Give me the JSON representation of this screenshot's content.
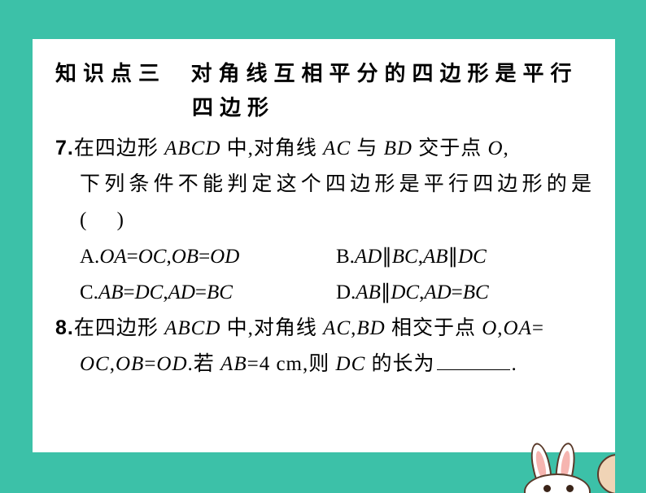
{
  "section": {
    "label": "知识点三",
    "title_line1": "对角线互相平分的四边形是平行",
    "title_line2": "四边形"
  },
  "q7": {
    "num": "7.",
    "line1_prefix": "在四边形",
    "abcd": "ABCD",
    "line1_mid1": "中,对角线",
    "ac": "AC",
    "line1_mid2": "与",
    "bd": "BD",
    "line1_mid3": "交于点",
    "o": "O",
    "line1_end": ",",
    "line2": "下列条件不能判定这个四边形是平行四边形的是",
    "paren_open": "(",
    "paren_close": ")",
    "optA_label": "A.",
    "optA_t1": "OA",
    "optA_eq1": "=",
    "optA_t2": "OC",
    "optA_c": ",",
    "optA_t3": "OB",
    "optA_eq2": "=",
    "optA_t4": "OD",
    "optB_label": "B.",
    "optB_t1": "AD",
    "optB_p1": "∥",
    "optB_t2": "BC",
    "optB_c": ",",
    "optB_t3": "AB",
    "optB_p2": "∥",
    "optB_t4": "DC",
    "optC_label": "C.",
    "optC_t1": "AB",
    "optC_eq1": "=",
    "optC_t2": "DC",
    "optC_c": ",",
    "optC_t3": "AD",
    "optC_eq2": "=",
    "optC_t4": "BC",
    "optD_label": "D.",
    "optD_t1": "AB",
    "optD_p1": "∥",
    "optD_t2": "DC",
    "optD_c": ",",
    "optD_t3": "AD",
    "optD_eq1": "=",
    "optD_t4": "BC"
  },
  "q8": {
    "num": "8.",
    "p1": "在四边形",
    "abcd": "ABCD",
    "p2": "中,对角线",
    "ac": "AC",
    "p2b": ",",
    "bd": "BD",
    "p3": "相交于点",
    "o": "O",
    "p3b": ",",
    "oa": "OA",
    "eq": "=",
    "oc": "OC",
    "c1": ",",
    "ob": "OB",
    "eq2": "=",
    "od": "OD",
    "p4": ".若",
    "ab": "AB",
    "eq3": "=",
    "val": "4 cm",
    "p5": ",则",
    "dc": "DC",
    "p6": "的长为",
    "period": "."
  },
  "colors": {
    "page_bg": "#3cc1a8",
    "card_bg": "#ffffff",
    "text": "#000000",
    "bunny_outline": "#5a3a2a",
    "bunny_blush": "#f6b5b0",
    "bunny_peek": "#f0d4b6"
  },
  "typography": {
    "title_fontsize": 26,
    "body_fontsize": 25,
    "title_family": "SimHei",
    "body_family": "SimSun"
  }
}
